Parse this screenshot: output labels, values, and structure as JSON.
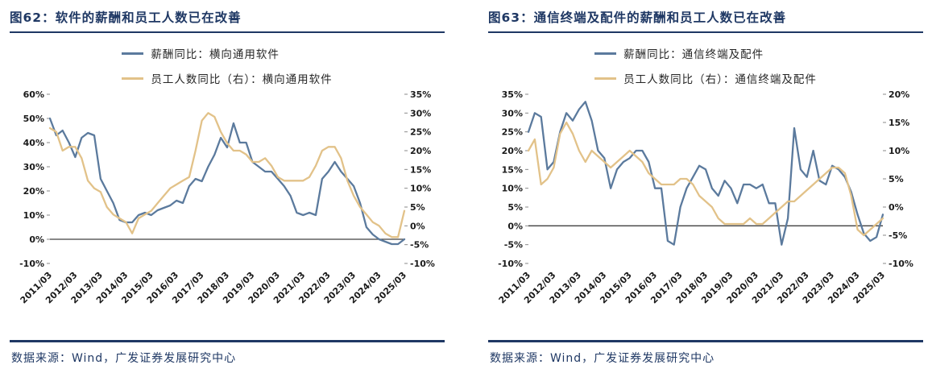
{
  "colors": {
    "navy": "#1F3864",
    "salary_line": "#5B7A9D",
    "headcount_line": "#E2C289",
    "zero_axis": "#404040"
  },
  "panels": [
    {
      "title": "图62：软件的薪酬和员工人数已在改善",
      "legend": [
        "薪酬同比：横向通用软件",
        "员工人数同比（右）：横向通用软件"
      ],
      "source": "数据来源：Wind，广发证券发展研究中心"
    },
    {
      "title": "图63：通信终端及配件的薪酬和员工人数已在改善",
      "legend": [
        "薪酬同比：通信终端及配件",
        "员工人数同比（右）：通信终端及配件"
      ],
      "source": "数据来源：Wind，广发证券发展研究中心"
    }
  ],
  "chart_data": [
    {
      "type": "line",
      "title": "图62：软件的薪酬和员工人数已在改善",
      "x": [
        "2011/03",
        "2011/06",
        "2011/09",
        "2011/12",
        "2012/03",
        "2012/06",
        "2012/09",
        "2012/12",
        "2013/03",
        "2013/06",
        "2013/09",
        "2013/12",
        "2014/03",
        "2014/06",
        "2014/09",
        "2014/12",
        "2015/03",
        "2015/06",
        "2015/09",
        "2015/12",
        "2016/03",
        "2016/06",
        "2016/09",
        "2016/12",
        "2017/03",
        "2017/06",
        "2017/09",
        "2017/12",
        "2018/03",
        "2018/06",
        "2018/09",
        "2018/12",
        "2019/03",
        "2019/06",
        "2019/09",
        "2019/12",
        "2020/03",
        "2020/06",
        "2020/09",
        "2020/12",
        "2021/03",
        "2021/06",
        "2021/09",
        "2021/12",
        "2022/03",
        "2022/06",
        "2022/09",
        "2022/12",
        "2023/03",
        "2023/06",
        "2023/09",
        "2023/12",
        "2024/03",
        "2024/06",
        "2024/09",
        "2024/12",
        "2025/03"
      ],
      "x_tick_labels": [
        "2011/03",
        "2012/03",
        "2013/03",
        "2014/03",
        "2015/03",
        "2016/03",
        "2017/03",
        "2018/03",
        "2019/03",
        "2020/03",
        "2021/03",
        "2022/03",
        "2023/03",
        "2024/03",
        "2025/03"
      ],
      "series": [
        {
          "name": "薪酬同比：横向通用软件",
          "axis": "left",
          "values": [
            50,
            43,
            45,
            40,
            34,
            42,
            44,
            43,
            25,
            20,
            15,
            8,
            7,
            7,
            10,
            11,
            10,
            12,
            13,
            14,
            16,
            15,
            22,
            25,
            24,
            30,
            35,
            42,
            38,
            48,
            40,
            40,
            32,
            30,
            28,
            28,
            25,
            22,
            18,
            11,
            10,
            11,
            10,
            25,
            28,
            32,
            28,
            25,
            22,
            15,
            5,
            2,
            0,
            -1,
            -2,
            -2,
            0
          ]
        },
        {
          "name": "员工人数同比（右）：横向通用软件",
          "axis": "right",
          "values": [
            26,
            25,
            20,
            21,
            21,
            18,
            12,
            10,
            9,
            5,
            3,
            2,
            1,
            -2,
            2,
            3,
            4,
            6,
            8,
            10,
            11,
            12,
            13,
            20,
            28,
            30,
            29,
            25,
            22,
            20,
            20,
            19,
            17,
            17,
            18,
            16,
            13,
            12,
            12,
            12,
            12,
            13,
            16,
            20,
            21,
            21,
            18,
            12,
            8,
            5,
            3,
            1,
            0,
            -2,
            -3,
            -3,
            4
          ]
        }
      ],
      "left_axis": {
        "min": -10,
        "max": 60,
        "step": 10,
        "format": "percent"
      },
      "right_axis": {
        "min": -10,
        "max": 35,
        "step": 5,
        "format": "percent"
      },
      "grid": false,
      "legend_position": "top"
    },
    {
      "type": "line",
      "title": "图63：通信终端及配件的薪酬和员工人数已在改善",
      "x": [
        "2011/03",
        "2011/06",
        "2011/09",
        "2011/12",
        "2012/03",
        "2012/06",
        "2012/09",
        "2012/12",
        "2013/03",
        "2013/06",
        "2013/09",
        "2013/12",
        "2014/03",
        "2014/06",
        "2014/09",
        "2014/12",
        "2015/03",
        "2015/06",
        "2015/09",
        "2015/12",
        "2016/03",
        "2016/06",
        "2016/09",
        "2016/12",
        "2017/03",
        "2017/06",
        "2017/09",
        "2017/12",
        "2018/03",
        "2018/06",
        "2018/09",
        "2018/12",
        "2019/03",
        "2019/06",
        "2019/09",
        "2019/12",
        "2020/03",
        "2020/06",
        "2020/09",
        "2020/12",
        "2021/03",
        "2021/06",
        "2021/09",
        "2021/12",
        "2022/03",
        "2022/06",
        "2022/09",
        "2022/12",
        "2023/03",
        "2023/06",
        "2023/09",
        "2023/12",
        "2024/03",
        "2024/06",
        "2024/09",
        "2024/12",
        "2025/03"
      ],
      "x_tick_labels": [
        "2011/03",
        "2012/03",
        "2013/03",
        "2014/03",
        "2015/03",
        "2016/03",
        "2017/03",
        "2018/03",
        "2019/03",
        "2020/03",
        "2021/03",
        "2022/03",
        "2023/03",
        "2024/03",
        "2025/03"
      ],
      "series": [
        {
          "name": "薪酬同比：通信终端及配件",
          "axis": "left",
          "values": [
            25,
            30,
            29,
            15,
            17,
            25,
            30,
            28,
            31,
            33,
            28,
            20,
            18,
            10,
            15,
            17,
            18,
            20,
            20,
            17,
            10,
            10,
            -4,
            -5,
            5,
            10,
            13,
            16,
            15,
            10,
            8,
            12,
            10,
            6,
            11,
            11,
            10,
            11,
            6,
            6,
            -5,
            2,
            26,
            15,
            13,
            20,
            12,
            11,
            16,
            15,
            13,
            9,
            3,
            -2,
            -4,
            -3,
            3
          ]
        },
        {
          "name": "员工人数同比（右）：通信终端及配件",
          "axis": "right",
          "values": [
            10,
            12,
            4,
            5,
            7,
            13,
            15,
            13,
            10,
            8,
            10,
            9,
            8,
            7,
            8,
            9,
            10,
            9,
            8,
            6,
            5,
            4,
            4,
            4,
            5,
            5,
            4,
            2,
            1,
            0,
            -2,
            -3,
            -3,
            -3,
            -3,
            -2,
            -3,
            -3,
            -2,
            -1,
            0,
            1,
            1,
            2,
            3,
            4,
            5,
            6,
            7,
            7,
            6,
            2,
            -4,
            -5,
            -4,
            -3,
            -2
          ]
        }
      ],
      "left_axis": {
        "min": -10,
        "max": 35,
        "step": 5,
        "format": "percent"
      },
      "right_axis": {
        "min": -10,
        "max": 20,
        "step": 5,
        "format": "percent"
      },
      "grid": false,
      "legend_position": "top"
    }
  ]
}
